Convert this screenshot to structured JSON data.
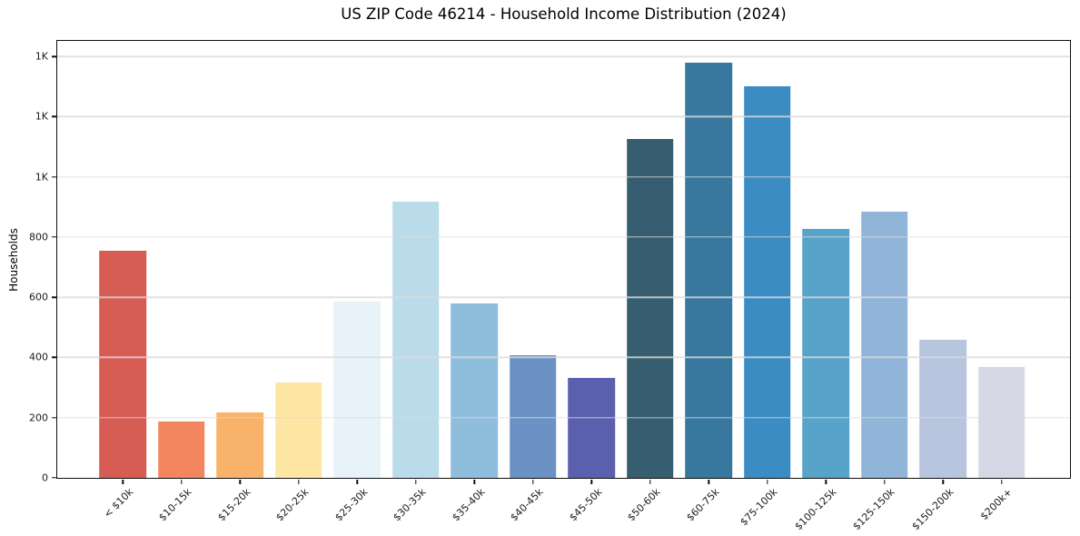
{
  "colors": {
    "background": "#ffffff",
    "spine": "#0f0f0f",
    "tick_text": "#1c1c1c",
    "title_text": "#000000",
    "grid": "#dbdbdb"
  },
  "chart_data": {
    "type": "bar",
    "title": "US ZIP Code 46214 - Household Income Distribution (2024)",
    "xlabel": "",
    "ylabel": "Households",
    "ylim": [
      0,
      1452
    ],
    "grid": "horizontal gridlines, light gray, drawn over bars",
    "legend": "none",
    "categories": [
      "< $10k",
      "$10-15k",
      "$15-20k",
      "$20-25k",
      "$25-30k",
      "$30-35k",
      "$35-40k",
      "$40-45k",
      "$45-50k",
      "$50-60k",
      "$60-75k",
      "$75-100k",
      "$100-125k",
      "$125-150k",
      "$150-200k",
      "$200k+"
    ],
    "values": [
      755,
      186,
      216,
      318,
      585,
      917,
      580,
      408,
      333,
      1125,
      1381,
      1301,
      826,
      884,
      460,
      368
    ],
    "bar_colors": [
      "#d65c54",
      "#f1865f",
      "#f9b269",
      "#fde5a4",
      "#e7f3f8",
      "#badcea",
      "#8fbddc",
      "#6c92c5",
      "#5a5fae",
      "#365e70",
      "#38789f",
      "#3a8cc3",
      "#58a3c9",
      "#90b5d8",
      "#b8c5df",
      "#d7d8e6"
    ],
    "ytick_values": [
      0,
      200,
      400,
      600,
      800,
      1000,
      1200,
      1400
    ],
    "ytick_labels": [
      "0",
      "200",
      "400",
      "600",
      "800",
      "1K",
      "1K",
      "1K"
    ]
  }
}
